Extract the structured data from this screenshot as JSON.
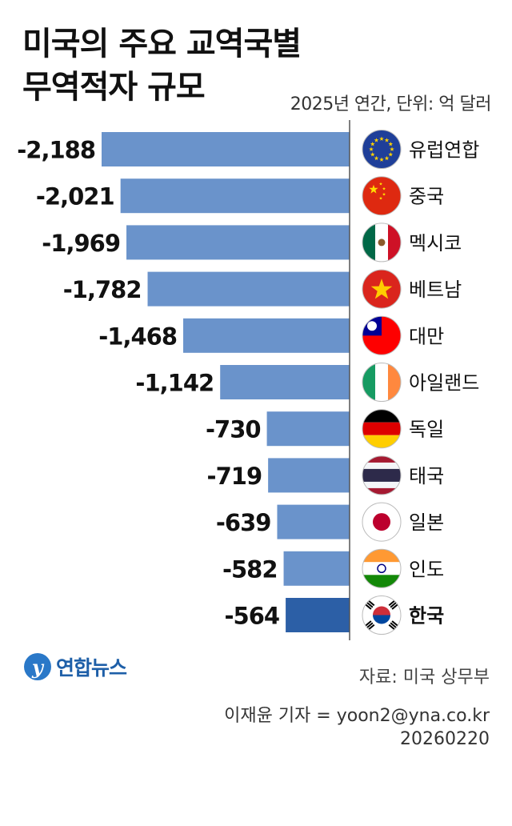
{
  "header": {
    "title_line1": "미국의 주요 교역국별",
    "title_line2": "무역적자 규모",
    "subtitle": "2025년 연간, 단위: 억 달러"
  },
  "chart_data": {
    "type": "bar",
    "orientation": "horizontal",
    "title": "미국의 주요 교역국별 무역적자 규모",
    "subtitle": "2025년 연간, 단위: 억 달러",
    "xlim": [
      -2188,
      0
    ],
    "categories": [
      "유럽연합",
      "중국",
      "멕시코",
      "베트남",
      "대만",
      "아일랜드",
      "독일",
      "태국",
      "일본",
      "인도",
      "한국"
    ],
    "values": [
      -2188,
      -2021,
      -1969,
      -1782,
      -1468,
      -1142,
      -730,
      -719,
      -639,
      -582,
      -564
    ],
    "value_labels": [
      "-2,188",
      "-2,021",
      "-1,969",
      "-1,782",
      "-1,468",
      "-1,142",
      "-730",
      "-719",
      "-639",
      "-582",
      "-564"
    ],
    "highlight": "한국",
    "flag_icons": [
      "eu-flag-icon",
      "china-flag-icon",
      "mexico-flag-icon",
      "vietnam-flag-icon",
      "taiwan-flag-icon",
      "ireland-flag-icon",
      "germany-flag-icon",
      "thailand-flag-icon",
      "japan-flag-icon",
      "india-flag-icon",
      "korea-flag-icon"
    ],
    "colors": {
      "bar": "#6a93cb",
      "highlight_bar": "#2c5fa6",
      "axis": "#555555"
    }
  },
  "footer": {
    "logo_text": "연합뉴스",
    "source": "자료: 미국 상무부",
    "credit_line1": "이재윤 기자 = yoon2@yna.co.kr",
    "credit_line2": "20260220"
  }
}
